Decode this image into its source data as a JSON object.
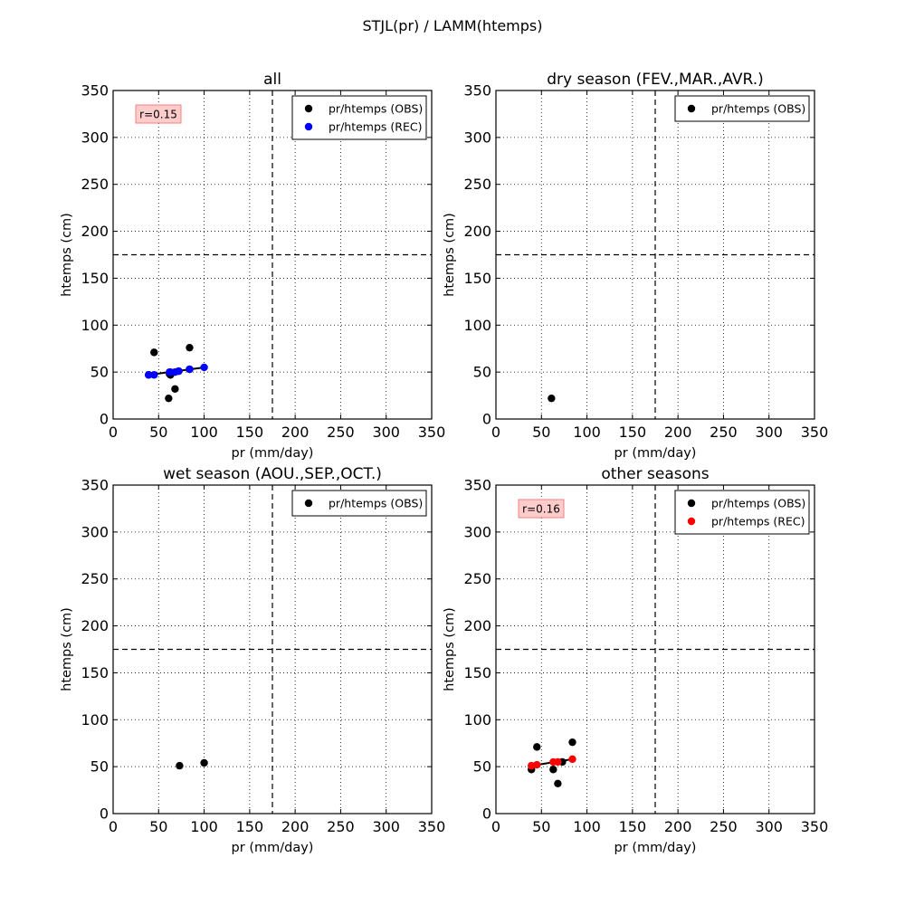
{
  "figure": {
    "title": "STJL(pr) / LAMM(htemps)"
  },
  "chart_data": [
    {
      "type": "scatter",
      "title": "all",
      "xlabel": "pr (mm/day)",
      "ylabel": "htemps (cm)",
      "xlim": [
        0,
        350
      ],
      "ylim": [
        0,
        350
      ],
      "xticks": [
        0,
        50,
        100,
        150,
        200,
        250,
        300,
        350
      ],
      "yticks": [
        0,
        50,
        100,
        150,
        200,
        250,
        300,
        350
      ],
      "grid": true,
      "threshold_x": 175,
      "threshold_y": 175,
      "legend_position": "top-right",
      "correlation": "r=0.15",
      "series": [
        {
          "name": "pr/htemps (OBS)",
          "color": "#000000",
          "x": [
            45,
            84,
            62,
            63,
            68,
            72,
            84,
            39
          ],
          "y": [
            71,
            76,
            48,
            47,
            32,
            51,
            53,
            47
          ]
        },
        {
          "name": "pr/htemps (REC)",
          "color": "#0000ff",
          "x": [
            39,
            45,
            62,
            63,
            68,
            72,
            84,
            100
          ],
          "y": [
            47,
            47,
            50,
            50,
            50,
            51,
            53,
            55
          ]
        }
      ],
      "extra_obs": {
        "x": [
          61
        ],
        "y": [
          22
        ]
      },
      "fit_line": {
        "x": [
          39,
          100
        ],
        "y": [
          47,
          55
        ]
      }
    },
    {
      "type": "scatter",
      "title": "dry season (FEV.,MAR.,AVR.)",
      "xlabel": "pr (mm/day)",
      "ylabel": "htemps (cm)",
      "xlim": [
        0,
        350
      ],
      "ylim": [
        0,
        350
      ],
      "xticks": [
        0,
        50,
        100,
        150,
        200,
        250,
        300,
        350
      ],
      "yticks": [
        0,
        50,
        100,
        150,
        200,
        250,
        300,
        350
      ],
      "grid": true,
      "threshold_x": 175,
      "threshold_y": 175,
      "legend_position": "top-right",
      "series": [
        {
          "name": "pr/htemps (OBS)",
          "color": "#000000",
          "x": [
            61
          ],
          "y": [
            22
          ]
        }
      ]
    },
    {
      "type": "scatter",
      "title": "wet season (AOU.,SEP.,OCT.)",
      "xlabel": "pr (mm/day)",
      "ylabel": "htemps (cm)",
      "xlim": [
        0,
        350
      ],
      "ylim": [
        0,
        350
      ],
      "xticks": [
        0,
        50,
        100,
        150,
        200,
        250,
        300,
        350
      ],
      "yticks": [
        0,
        50,
        100,
        150,
        200,
        250,
        300,
        350
      ],
      "grid": true,
      "threshold_x": 175,
      "threshold_y": 175,
      "legend_position": "top-right",
      "series": [
        {
          "name": "pr/htemps (OBS)",
          "color": "#000000",
          "x": [
            73,
            100
          ],
          "y": [
            51,
            54
          ]
        }
      ]
    },
    {
      "type": "scatter",
      "title": "other seasons",
      "xlabel": "pr (mm/day)",
      "ylabel": "htemps (cm)",
      "xlim": [
        0,
        350
      ],
      "ylim": [
        0,
        350
      ],
      "xticks": [
        0,
        50,
        100,
        150,
        200,
        250,
        300,
        350
      ],
      "yticks": [
        0,
        50,
        100,
        150,
        200,
        250,
        300,
        350
      ],
      "grid": true,
      "threshold_x": 175,
      "threshold_y": 175,
      "legend_position": "top-right",
      "correlation": "r=0.16",
      "series": [
        {
          "name": "pr/htemps (OBS)",
          "color": "#000000",
          "x": [
            45,
            84,
            39,
            63,
            68,
            73
          ],
          "y": [
            71,
            76,
            47,
            47,
            32,
            55
          ]
        },
        {
          "name": "pr/htemps (REC)",
          "color": "#ff0000",
          "x": [
            39,
            45,
            63,
            68,
            84
          ],
          "y": [
            51,
            52,
            55,
            55,
            58
          ]
        }
      ],
      "fit_line": {
        "x": [
          39,
          84
        ],
        "y": [
          51,
          58
        ]
      }
    }
  ]
}
